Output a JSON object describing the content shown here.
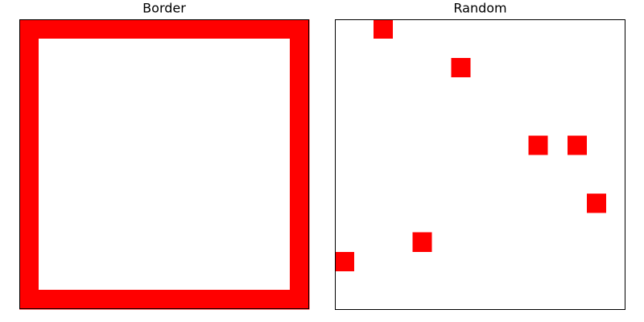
{
  "chart_data": [
    {
      "type": "grid",
      "title": "Border",
      "colors": [
        "#ffffff",
        "#ff0000"
      ],
      "values": [
        [
          1,
          1,
          1,
          1,
          1,
          1,
          1,
          1,
          1,
          1,
          1,
          1,
          1,
          1,
          1
        ],
        [
          1,
          0,
          0,
          0,
          0,
          0,
          0,
          0,
          0,
          0,
          0,
          0,
          0,
          0,
          1
        ],
        [
          1,
          0,
          0,
          0,
          0,
          0,
          0,
          0,
          0,
          0,
          0,
          0,
          0,
          0,
          1
        ],
        [
          1,
          0,
          0,
          0,
          0,
          0,
          0,
          0,
          0,
          0,
          0,
          0,
          0,
          0,
          1
        ],
        [
          1,
          0,
          0,
          0,
          0,
          0,
          0,
          0,
          0,
          0,
          0,
          0,
          0,
          0,
          1
        ],
        [
          1,
          0,
          0,
          0,
          0,
          0,
          0,
          0,
          0,
          0,
          0,
          0,
          0,
          0,
          1
        ],
        [
          1,
          0,
          0,
          0,
          0,
          0,
          0,
          0,
          0,
          0,
          0,
          0,
          0,
          0,
          1
        ],
        [
          1,
          0,
          0,
          0,
          0,
          0,
          0,
          0,
          0,
          0,
          0,
          0,
          0,
          0,
          1
        ],
        [
          1,
          0,
          0,
          0,
          0,
          0,
          0,
          0,
          0,
          0,
          0,
          0,
          0,
          0,
          1
        ],
        [
          1,
          0,
          0,
          0,
          0,
          0,
          0,
          0,
          0,
          0,
          0,
          0,
          0,
          0,
          1
        ],
        [
          1,
          0,
          0,
          0,
          0,
          0,
          0,
          0,
          0,
          0,
          0,
          0,
          0,
          0,
          1
        ],
        [
          1,
          0,
          0,
          0,
          0,
          0,
          0,
          0,
          0,
          0,
          0,
          0,
          0,
          0,
          1
        ],
        [
          1,
          0,
          0,
          0,
          0,
          0,
          0,
          0,
          0,
          0,
          0,
          0,
          0,
          0,
          1
        ],
        [
          1,
          0,
          0,
          0,
          0,
          0,
          0,
          0,
          0,
          0,
          0,
          0,
          0,
          0,
          1
        ],
        [
          1,
          1,
          1,
          1,
          1,
          1,
          1,
          1,
          1,
          1,
          1,
          1,
          1,
          1,
          1
        ]
      ]
    },
    {
      "type": "grid",
      "title": "Random",
      "colors": [
        "#ffffff",
        "#ff0000"
      ],
      "values": [
        [
          0,
          0,
          1,
          0,
          0,
          0,
          0,
          0,
          0,
          0,
          0,
          0,
          0,
          0,
          0
        ],
        [
          0,
          0,
          0,
          0,
          0,
          0,
          0,
          0,
          0,
          0,
          0,
          0,
          0,
          0,
          0
        ],
        [
          0,
          0,
          0,
          0,
          0,
          0,
          1,
          0,
          0,
          0,
          0,
          0,
          0,
          0,
          0
        ],
        [
          0,
          0,
          0,
          0,
          0,
          0,
          0,
          0,
          0,
          0,
          0,
          0,
          0,
          0,
          0
        ],
        [
          0,
          0,
          0,
          0,
          0,
          0,
          0,
          0,
          0,
          0,
          0,
          0,
          0,
          0,
          0
        ],
        [
          0,
          0,
          0,
          0,
          0,
          0,
          0,
          0,
          0,
          0,
          0,
          0,
          0,
          0,
          0
        ],
        [
          0,
          0,
          0,
          0,
          0,
          0,
          0,
          0,
          0,
          0,
          1,
          0,
          1,
          0,
          0
        ],
        [
          0,
          0,
          0,
          0,
          0,
          0,
          0,
          0,
          0,
          0,
          0,
          0,
          0,
          0,
          0
        ],
        [
          0,
          0,
          0,
          0,
          0,
          0,
          0,
          0,
          0,
          0,
          0,
          0,
          0,
          0,
          0
        ],
        [
          0,
          0,
          0,
          0,
          0,
          0,
          0,
          0,
          0,
          0,
          0,
          0,
          0,
          1,
          0
        ],
        [
          0,
          0,
          0,
          0,
          0,
          0,
          0,
          0,
          0,
          0,
          0,
          0,
          0,
          0,
          0
        ],
        [
          0,
          0,
          0,
          0,
          1,
          0,
          0,
          0,
          0,
          0,
          0,
          0,
          0,
          0,
          0
        ],
        [
          1,
          0,
          0,
          0,
          0,
          0,
          0,
          0,
          0,
          0,
          0,
          0,
          0,
          0,
          0
        ],
        [
          0,
          0,
          0,
          0,
          0,
          0,
          0,
          0,
          0,
          0,
          0,
          0,
          0,
          0,
          0
        ],
        [
          0,
          0,
          0,
          0,
          0,
          0,
          0,
          0,
          0,
          0,
          0,
          0,
          0,
          0,
          0
        ]
      ]
    }
  ]
}
